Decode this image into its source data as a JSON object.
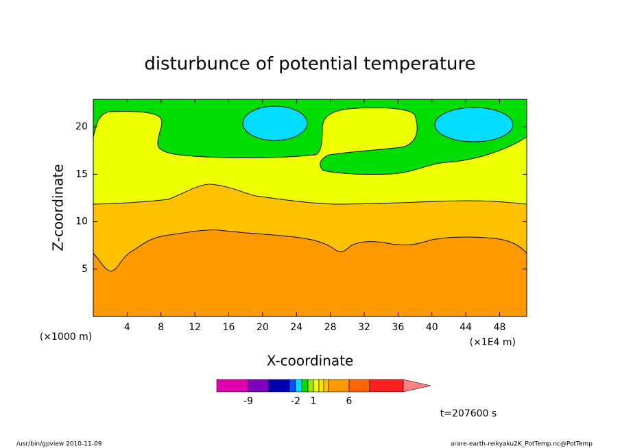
{
  "chart_data": {
    "type": "contour",
    "title": "disturbunce of potential temperature",
    "xlabel": "X-coordinate",
    "ylabel": "Z-coordinate",
    "xunit": "(×1E4 m)",
    "yunit": "(×1000 m)",
    "xlim": [
      0,
      51.2
    ],
    "ylim": [
      0,
      22.9
    ],
    "xticks": [
      4,
      8,
      12,
      16,
      20,
      24,
      28,
      32,
      36,
      40,
      44,
      48
    ],
    "yticks": [
      5,
      10,
      15,
      20
    ],
    "colorbar": {
      "levels": [
        -12,
        -9,
        -6,
        -4,
        -2,
        -1,
        0,
        1,
        2,
        3,
        4,
        6,
        8,
        10
      ],
      "colors": [
        "#e000b0",
        "#8000c0",
        "#0000b0",
        "#0050ff",
        "#00ddff",
        "#00dd00",
        "#a0e600",
        "#eeff00",
        "#ffe000",
        "#ffc000",
        "#ff9900",
        "#ff6600",
        "#ff2020"
      ],
      "extend_color": "#ff8080",
      "ticks": [
        -9,
        -2,
        1,
        6
      ]
    },
    "time_label": "t=207600 s",
    "footer_left": "/usr/bin/gpview  2010-11-09",
    "footer_right": "arare-earth-reikyaku2K_PotTemp.nc@PotTemp"
  }
}
